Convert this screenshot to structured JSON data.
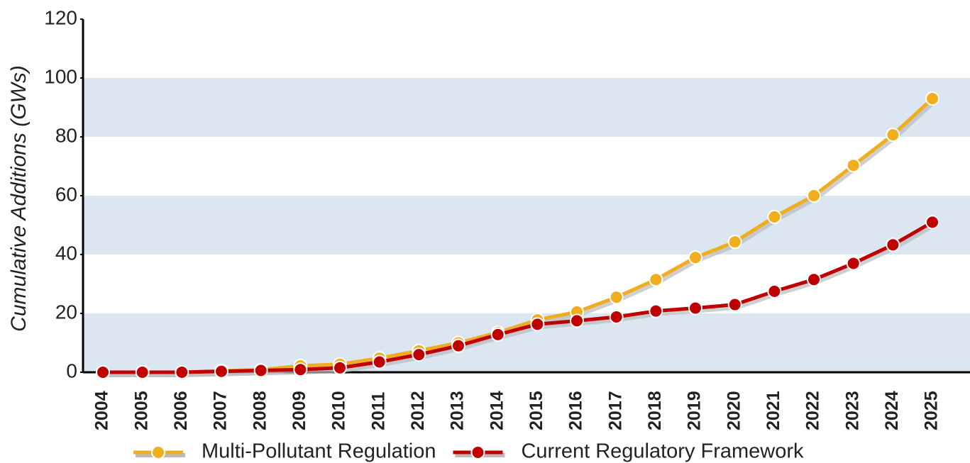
{
  "chart_data": {
    "type": "line",
    "y_label": "Cumulative Additions (GWs)",
    "categories": [
      "2004",
      "2005",
      "2006",
      "2007",
      "2008",
      "2009",
      "2010",
      "2011",
      "2012",
      "2013",
      "2014",
      "2015",
      "2016",
      "2017",
      "2018",
      "2019",
      "2020",
      "2021",
      "2022",
      "2023",
      "2024",
      "2025"
    ],
    "series": [
      {
        "name": "Multi-Pollutant Regulation",
        "color": "#f0ae1e",
        "values": [
          0,
          0,
          0,
          0.5,
          0.8,
          2.2,
          2.7,
          4.8,
          7.3,
          10,
          13.5,
          17.8,
          20.5,
          25.5,
          31.5,
          39,
          44.3,
          52.8,
          60,
          70.3,
          80.7,
          93
        ]
      },
      {
        "name": "Current Regulatory Framework",
        "color": "#c00000",
        "values": [
          0,
          0,
          0,
          0.3,
          0.6,
          0.9,
          1.5,
          3.5,
          6,
          9,
          12.8,
          16.3,
          17.5,
          18.8,
          20.8,
          21.8,
          23,
          27.5,
          31.5,
          37,
          43.3,
          51
        ]
      }
    ],
    "ylim": [
      0,
      120
    ],
    "yticks": [
      0,
      20,
      40,
      60,
      80,
      100,
      120
    ],
    "grid": "bands",
    "band_color": "#dbe6f1",
    "legend": "bottom"
  }
}
